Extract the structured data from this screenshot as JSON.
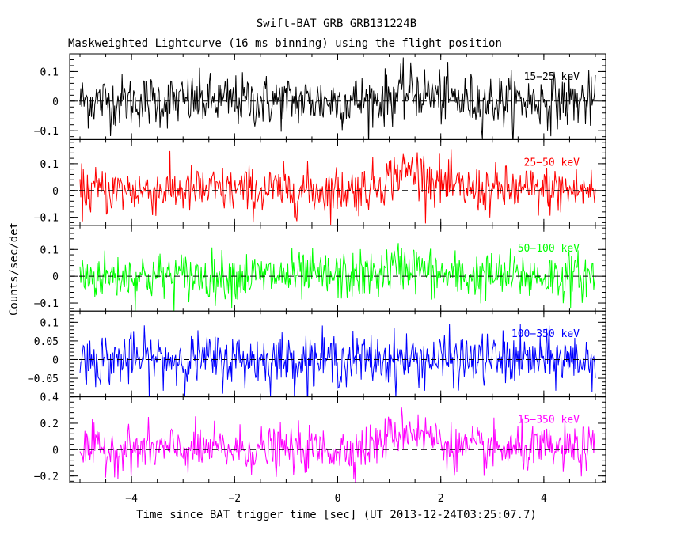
{
  "chart_data": {
    "type": "line",
    "title": "Swift-BAT GRB GRB131224B",
    "subtitle": "Maskweighted Lightcurve (16 ms binning) using the flight position",
    "xlabel": "Time since BAT trigger time [sec] (UT 2013-12-24T03:25:07.7)",
    "ylabel": "Counts/sec/det",
    "xlim": [
      -5.2,
      5.2
    ],
    "x_ticks": [
      -4,
      -2,
      0,
      2,
      4
    ],
    "x_tick_labels": [
      "−4",
      "−2",
      "0",
      "2",
      "4"
    ],
    "series_x_range": [
      -5.0,
      5.0
    ],
    "bin_width_s": 0.016,
    "panels": [
      {
        "name": "15-25 keV",
        "label": "15−25 keV",
        "color": "#000000",
        "ylim": [
          -0.13,
          0.16
        ],
        "y_ticks": [
          -0.1,
          0,
          0.1
        ],
        "y_tick_labels": [
          "−0.1",
          "0",
          "0.1"
        ],
        "noise_sigma": 0.045,
        "pulse_amplitude": 0.03,
        "pulse_center": 1.5,
        "pulse_width": 0.55
      },
      {
        "name": "25-50 keV",
        "label": "25−50 keV",
        "color": "#ff0000",
        "ylim": [
          -0.13,
          0.19
        ],
        "y_ticks": [
          -0.1,
          0,
          0.1
        ],
        "y_tick_labels": [
          "−0.1",
          "0",
          "0.1"
        ],
        "noise_sigma": 0.045,
        "pulse_amplitude": 0.075,
        "pulse_center": 1.4,
        "pulse_width": 0.6
      },
      {
        "name": "50-100 keV",
        "label": "50−100 keV",
        "color": "#00ff00",
        "ylim": [
          -0.13,
          0.19
        ],
        "y_ticks": [
          -0.1,
          0,
          0.1
        ],
        "y_tick_labels": [
          "−0.1",
          "0",
          "0.1"
        ],
        "noise_sigma": 0.045,
        "pulse_amplitude": 0.04,
        "pulse_center": 1.3,
        "pulse_width": 0.45
      },
      {
        "name": "100-350 keV",
        "label": "100−350 keV",
        "color": "#0000ff",
        "ylim": [
          -0.1,
          0.13
        ],
        "y_ticks": [
          -0.05,
          0,
          0.05,
          0.1
        ],
        "y_tick_labels": [
          "−0.05",
          "0",
          "0.05",
          "0.1"
        ],
        "noise_sigma": 0.035,
        "pulse_amplitude": 0.0,
        "pulse_center": 1.3,
        "pulse_width": 0.5
      },
      {
        "name": "15-350 keV",
        "label": "15−350 keV",
        "color": "#ff00ff",
        "ylim": [
          -0.25,
          0.4
        ],
        "y_ticks": [
          -0.2,
          0,
          0.2,
          0.4
        ],
        "y_tick_labels": [
          "−0.2",
          "0",
          "0.2",
          "0.4"
        ],
        "noise_sigma": 0.085,
        "pulse_amplitude": 0.15,
        "pulse_center": 1.4,
        "pulse_width": 0.6
      }
    ]
  }
}
